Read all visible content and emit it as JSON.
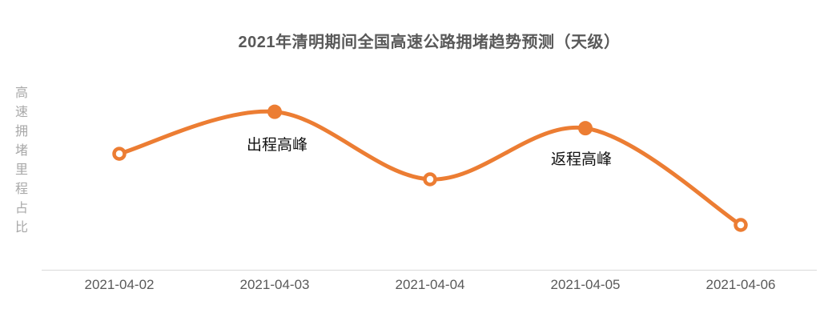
{
  "title": "2021年清明期间全国高速公路拥堵趋势预测（天级）",
  "y_axis_label": "高速拥堵里程占比",
  "colors": {
    "line": "#ec7d33",
    "marker_fill": "#ec7d33",
    "marker_open_fill": "#ffffff",
    "title_text": "#595959",
    "axis_text": "#595959",
    "y_label_text": "#a8a8a8",
    "axis_line": "#d9d9d9",
    "annotation_text": "#111111",
    "background": "#ffffff"
  },
  "chart_data": {
    "type": "line",
    "title": "2021年清明期间全国高速公路拥堵趋势预测（天级）",
    "xlabel": "",
    "ylabel": "高速拥堵里程占比",
    "categories": [
      "2021-04-02",
      "2021-04-03",
      "2021-04-04",
      "2021-04-05",
      "2021-04-06"
    ],
    "values": [
      0.64,
      0.87,
      0.5,
      0.78,
      0.25
    ],
    "ylim": [
      0,
      1
    ],
    "y_ticks_visible": false,
    "grid": false,
    "legend": "none",
    "smooth": true,
    "point_styles": [
      "open",
      "filled",
      "open",
      "filled",
      "open"
    ],
    "point_annotations": [
      null,
      "出程高峰",
      null,
      "返程高峰",
      null
    ]
  }
}
